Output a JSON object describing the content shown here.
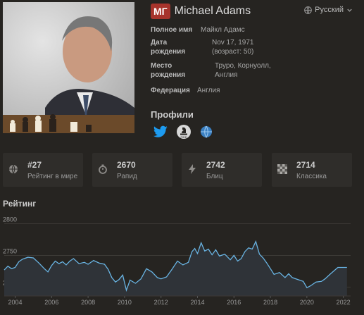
{
  "header": {
    "title_badge": "МГ",
    "player_name": "Michael Adams",
    "language": "Русский"
  },
  "info": {
    "full_name_label": "Полное имя",
    "full_name_value": "Майкл Адамс",
    "birth_label": "Дата рождения",
    "birth_value": "Nov 17, 1971 (возраст: 50)",
    "place_label": "Место рождения",
    "place_value": "Труро, Корнуолл, Англия",
    "federation_label": "Федерация",
    "federation_value": "Англия"
  },
  "profiles": {
    "title": "Профили",
    "icons": [
      "twitter-icon",
      "fide-icon",
      "globe-icon"
    ]
  },
  "stats": [
    {
      "value": "#27",
      "label": "Рейтинг в мире",
      "icon": "globe-icon"
    },
    {
      "value": "2670",
      "label": "Рапид",
      "icon": "stopwatch-icon"
    },
    {
      "value": "2742",
      "label": "Блиц",
      "icon": "lightning-icon"
    },
    {
      "value": "2714",
      "label": "Классика",
      "icon": "chessboard-icon"
    }
  ],
  "rating": {
    "title": "Рейтинг"
  },
  "chart_data": {
    "type": "area",
    "ylim": [
      2686,
      2815
    ],
    "xlim": [
      2003.4,
      2022.4
    ],
    "y_ticks": [
      2800,
      2750,
      2700
    ],
    "x_ticks": [
      2004,
      2006,
      2008,
      2010,
      2012,
      2014,
      2016,
      2018,
      2020,
      2022
    ],
    "series": [
      {
        "x": [
          2003.4,
          2003.6,
          2003.8,
          2004.0,
          2004.2,
          2004.4,
          2004.7,
          2005.0,
          2005.3,
          2005.6,
          2005.8,
          2006.0,
          2006.2,
          2006.4,
          2006.6,
          2006.8,
          2007.0,
          2007.2,
          2007.5,
          2007.8,
          2008.0,
          2008.3,
          2008.6,
          2008.9,
          2009.1,
          2009.3,
          2009.5,
          2009.7,
          2009.9,
          2010.1,
          2010.3,
          2010.6,
          2010.9,
          2011.2,
          2011.5,
          2011.8,
          2012.0,
          2012.3,
          2012.6,
          2012.9,
          2013.2,
          2013.5,
          2013.7,
          2013.85,
          2014.0,
          2014.2,
          2014.4,
          2014.6,
          2014.8,
          2015.0,
          2015.2,
          2015.5,
          2015.8,
          2016.0,
          2016.2,
          2016.4,
          2016.6,
          2016.8,
          2017.0,
          2017.2,
          2017.4,
          2017.6,
          2017.8,
          2018.0,
          2018.2,
          2018.5,
          2018.8,
          2019.0,
          2019.2,
          2019.5,
          2019.8,
          2020.0,
          2020.2,
          2020.5,
          2020.8,
          2021.0,
          2021.3,
          2021.7,
          2022.0,
          2022.2
        ],
        "y": [
          2727,
          2733,
          2729,
          2731,
          2740,
          2744,
          2747,
          2746,
          2738,
          2729,
          2724,
          2734,
          2741,
          2737,
          2740,
          2735,
          2741,
          2745,
          2737,
          2739,
          2736,
          2742,
          2738,
          2736,
          2728,
          2715,
          2708,
          2712,
          2719,
          2695,
          2711,
          2706,
          2713,
          2729,
          2724,
          2715,
          2713,
          2716,
          2728,
          2741,
          2735,
          2739,
          2756,
          2761,
          2753,
          2770,
          2757,
          2760,
          2751,
          2759,
          2749,
          2752,
          2743,
          2750,
          2741,
          2745,
          2756,
          2762,
          2760,
          2772,
          2752,
          2746,
          2738,
          2729,
          2720,
          2723,
          2715,
          2721,
          2715,
          2712,
          2709,
          2699,
          2702,
          2708,
          2709,
          2713,
          2721,
          2731,
          2731,
          2731
        ]
      }
    ]
  }
}
